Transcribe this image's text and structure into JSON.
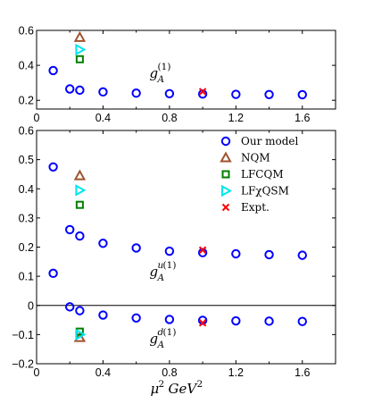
{
  "chart_data": [
    {
      "type": "scatter",
      "panel": "top",
      "xlim": [
        0,
        1.8
      ],
      "ylim": [
        0.15,
        0.6
      ],
      "xticks": [
        "0",
        "0.4",
        "0.8",
        "1.2",
        "1.6"
      ],
      "yticks": [
        "0.2",
        "0.4",
        "0.6"
      ],
      "annotation": {
        "base": "g",
        "sub": "A",
        "sup": "(1)",
        "x": 0.68,
        "y": 0.33
      },
      "series": [
        {
          "key": "our_model",
          "marker": "circle",
          "color": "#0000ff",
          "points": [
            [
              0.1,
              0.37
            ],
            [
              0.2,
              0.265
            ],
            [
              0.26,
              0.258
            ],
            [
              0.4,
              0.248
            ],
            [
              0.6,
              0.241
            ],
            [
              0.8,
              0.238
            ],
            [
              1.0,
              0.236
            ],
            [
              1.2,
              0.234
            ],
            [
              1.4,
              0.233
            ],
            [
              1.6,
              0.232
            ]
          ]
        },
        {
          "key": "nqm",
          "marker": "triangle-up",
          "color": "#a0522d",
          "points": [
            [
              0.26,
              0.56
            ]
          ]
        },
        {
          "key": "lfcqm",
          "marker": "square",
          "color": "#008000",
          "points": [
            [
              0.26,
              0.435
            ]
          ]
        },
        {
          "key": "lfxqsm",
          "marker": "triangle-right",
          "color": "#00e5ee",
          "points": [
            [
              0.26,
              0.49
            ]
          ]
        },
        {
          "key": "expt",
          "marker": "x",
          "color": "#ff0000",
          "points": [
            [
              1.0,
              0.25
            ]
          ],
          "yerr": [
            0.01
          ]
        }
      ]
    },
    {
      "type": "scatter",
      "panel": "bottom",
      "xlim": [
        0,
        1.8
      ],
      "ylim": [
        -0.2,
        0.6
      ],
      "xlabel": {
        "base": "μ",
        "sup": "2",
        "unit": "GeV",
        "unit_sup": "2"
      },
      "xticks": [
        "0",
        "0.4",
        "0.8",
        "1.2",
        "1.6"
      ],
      "yticks": [
        "−0.2",
        "−0.1",
        "0",
        "0.1",
        "0.2",
        "0.3",
        "0.4",
        "0.5",
        "0.6"
      ],
      "annotations": [
        {
          "base": "g",
          "sub": "A",
          "sup_i": "u",
          "sup": "(1)",
          "x": 0.68,
          "y": 0.1
        },
        {
          "base": "g",
          "sub": "A",
          "sup_i": "d",
          "sup": "(1)",
          "x": 0.68,
          "y": -0.13
        }
      ],
      "legend": {
        "position": "top-right",
        "entries": [
          {
            "key": "our_model",
            "label": "Our model"
          },
          {
            "key": "nqm",
            "label": "NQM"
          },
          {
            "key": "lfcqm",
            "label": "LFCQM"
          },
          {
            "key": "lfxqsm",
            "label": "LFχQSM"
          },
          {
            "key": "expt",
            "label": "Expt."
          }
        ]
      },
      "series": [
        {
          "key": "our_model_u",
          "marker": "circle",
          "color": "#0000ff",
          "points": [
            [
              0.1,
              0.475
            ],
            [
              0.1,
              0.11
            ],
            [
              0.2,
              0.26
            ],
            [
              0.26,
              0.238
            ],
            [
              0.4,
              0.213
            ],
            [
              0.6,
              0.197
            ],
            [
              0.8,
              0.186
            ],
            [
              1.0,
              0.181
            ],
            [
              1.2,
              0.177
            ],
            [
              1.4,
              0.174
            ],
            [
              1.6,
              0.172
            ]
          ]
        },
        {
          "key": "our_model_d",
          "marker": "circle",
          "color": "#0000ff",
          "points": [
            [
              0.2,
              -0.005
            ],
            [
              0.26,
              -0.018
            ],
            [
              0.4,
              -0.033
            ],
            [
              0.6,
              -0.043
            ],
            [
              0.8,
              -0.048
            ],
            [
              1.0,
              -0.051
            ],
            [
              1.2,
              -0.053
            ],
            [
              1.4,
              -0.054
            ],
            [
              1.6,
              -0.055
            ]
          ]
        },
        {
          "key": "nqm",
          "marker": "triangle-up",
          "color": "#a0522d",
          "points": [
            [
              0.26,
              0.445
            ],
            [
              0.26,
              -0.11
            ]
          ]
        },
        {
          "key": "lfcqm",
          "marker": "square",
          "color": "#008000",
          "points": [
            [
              0.26,
              0.345
            ],
            [
              0.26,
              -0.09
            ]
          ]
        },
        {
          "key": "lfxqsm",
          "marker": "triangle-right",
          "color": "#00e5ee",
          "points": [
            [
              0.26,
              0.395
            ],
            [
              0.26,
              -0.1
            ]
          ]
        },
        {
          "key": "expt",
          "marker": "x",
          "color": "#ff0000",
          "points": [
            [
              1.0,
              0.19
            ],
            [
              1.0,
              -0.06
            ]
          ]
        }
      ]
    }
  ]
}
